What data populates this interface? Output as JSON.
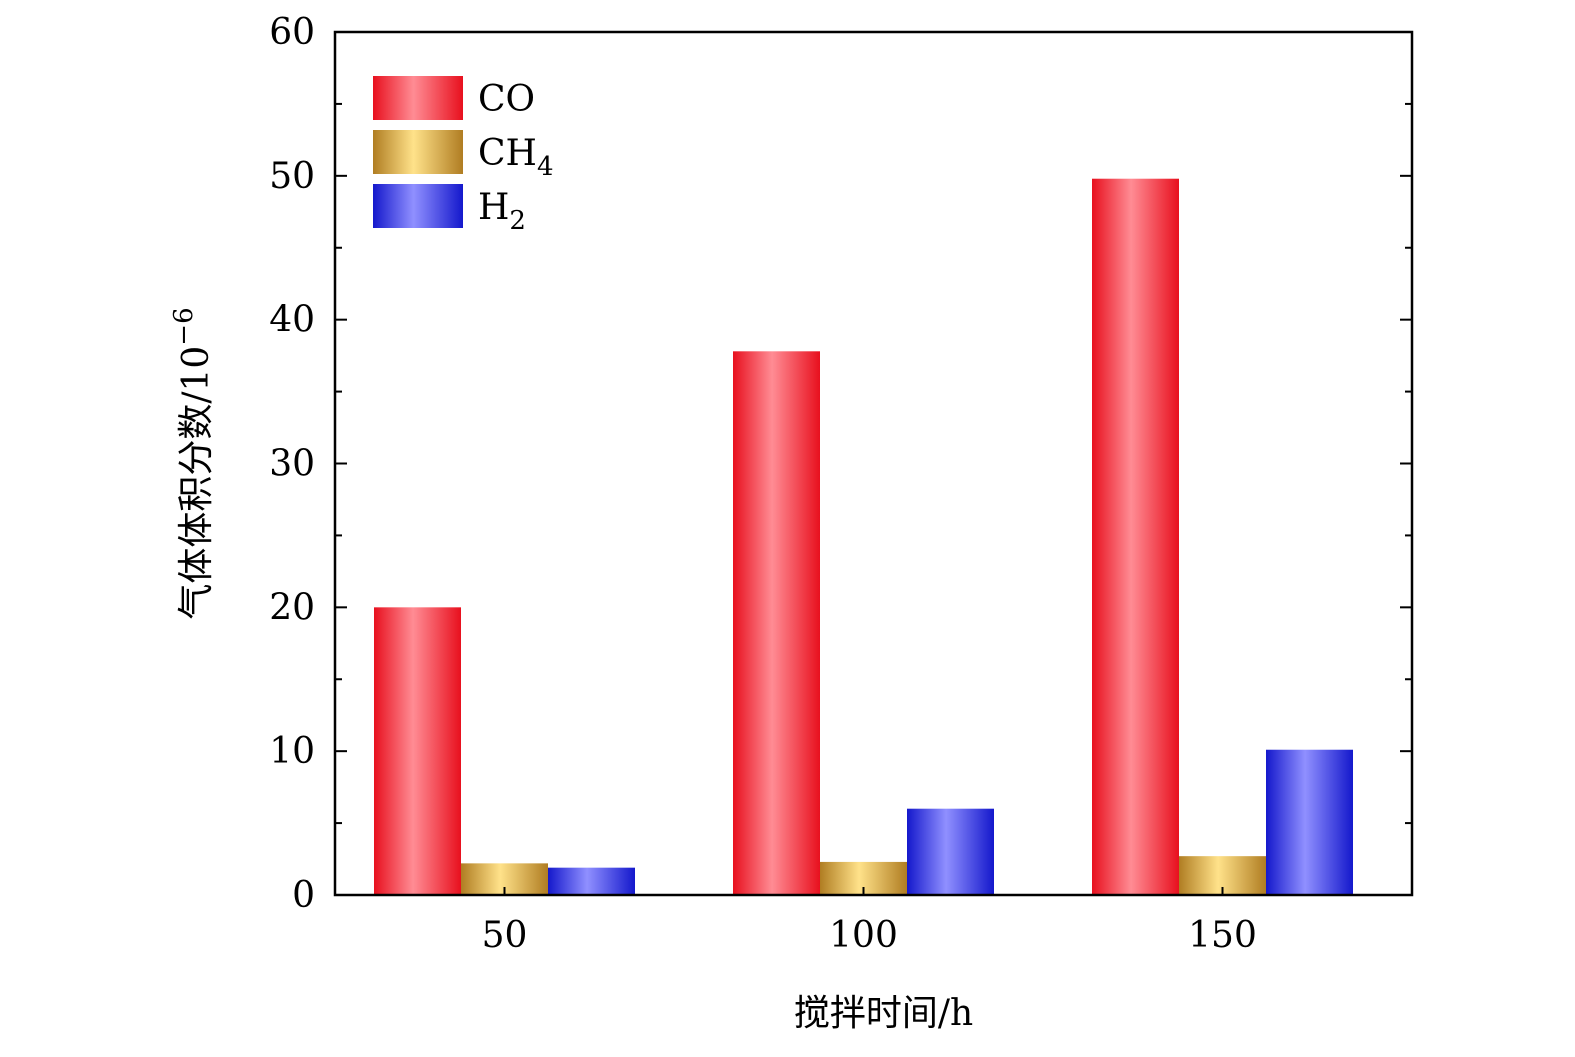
{
  "chart_data": {
    "type": "bar",
    "categories": [
      "50",
      "100",
      "150"
    ],
    "series": [
      {
        "name": "CO",
        "name_main": "CO",
        "name_sub": "",
        "color": "#e8101e",
        "highlight": "#ff8c94",
        "values": [
          20.0,
          37.8,
          49.8
        ]
      },
      {
        "name": "CH4",
        "name_main": "CH",
        "name_sub": "4",
        "color": "#b07d22",
        "highlight": "#ffe28a",
        "values": [
          2.2,
          2.3,
          2.7
        ]
      },
      {
        "name": "H2",
        "name_main": "H",
        "name_sub": "2",
        "color": "#1418cc",
        "highlight": "#9090ff",
        "values": [
          1.9,
          6.0,
          10.1
        ]
      }
    ],
    "xlabel": "搅拌时间/h",
    "ylabel": "气体体积分数/10",
    "ylabel_exp": "−6",
    "ylim": [
      0,
      60
    ],
    "yticks": [
      "0",
      "10",
      "20",
      "30",
      "40",
      "50",
      "60"
    ],
    "grid": false,
    "legend_position": "top-left"
  }
}
